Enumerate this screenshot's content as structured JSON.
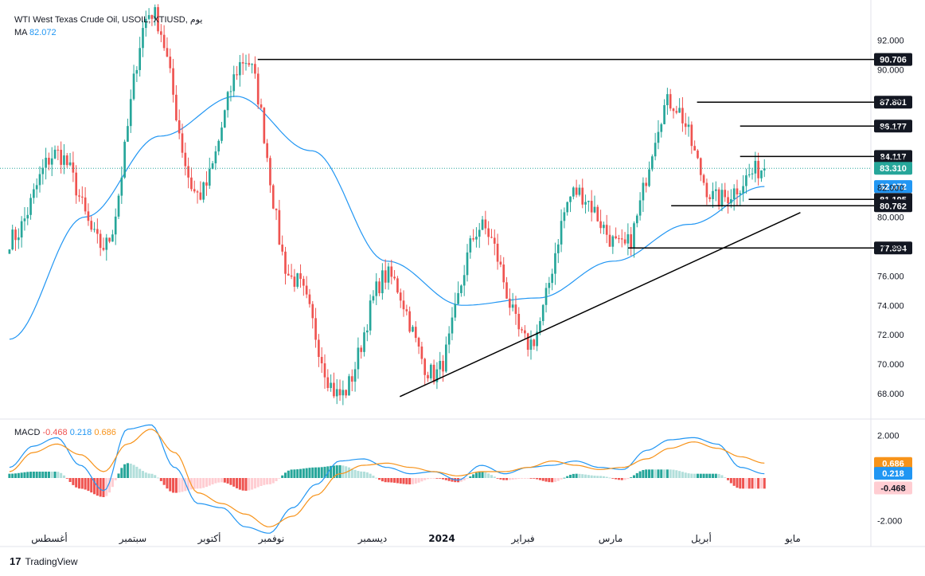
{
  "header": {
    "symbol": "WTI West Texas Crude Oil, USOIL, XTIUSD, يوم",
    "ma_label": "MA",
    "ma_value": "82.072",
    "macd_label": "MACD",
    "macd_hist": "-0.468",
    "macd_line": "0.218",
    "macd_signal": "0.686"
  },
  "branding": {
    "logo_text": "TradingView"
  },
  "colors": {
    "up": "#26a69a",
    "down": "#ef5350",
    "ma": "#2196f3",
    "signal": "#f7931a",
    "hist_up_strong": "#26a69a",
    "hist_up_weak": "#b2dfdb",
    "hist_down_strong": "#ef5350",
    "hist_down_weak": "#ffcdd2",
    "last_price_bg": "#26a69a",
    "ma_tag_bg": "#2196f3",
    "level_tag_bg": "#131722"
  },
  "chart_data": [
    {
      "type": "candlestick",
      "title": "WTI West Texas Crude Oil, USOIL, XTIUSD, يوم",
      "y_ticks": [
        "68.000",
        "70.000",
        "72.000",
        "74.000",
        "76.000",
        "78.000",
        "80.000",
        "82.000",
        "84.000",
        "86.000",
        "88.000",
        "90.000",
        "92.000"
      ],
      "ylim": [
        66.6,
        94.2
      ],
      "x_ticks": [
        "أغسطس",
        "سبتمبر",
        "أكتوبر",
        "نوفمبر",
        "ديسمبر",
        "2024",
        "فبراير",
        "مارس",
        "أبريل",
        "مايو"
      ],
      "horizontal_levels": [
        "90.706",
        "87.801",
        "86.177",
        "84.117",
        "81.195",
        "80.762",
        "77.894"
      ],
      "last_price": "83.310",
      "ma_tag": "82.072",
      "key_points": [
        {
          "label": "start",
          "value": 78.5
        },
        {
          "label": "aug-high",
          "value": 84.3
        },
        {
          "label": "late-aug-low",
          "value": 78.0
        },
        {
          "label": "sep-high",
          "value": 93.9
        },
        {
          "label": "early-oct-low",
          "value": 81.5
        },
        {
          "label": "oct-high",
          "value": 90.7
        },
        {
          "label": "nov-low",
          "value": 75.8
        },
        {
          "label": "dec-low",
          "value": 67.9
        },
        {
          "label": "dec-high",
          "value": 76.0
        },
        {
          "label": "jan-low",
          "value": 69.3
        },
        {
          "label": "jan-high",
          "value": 79.3
        },
        {
          "label": "feb-low",
          "value": 71.4
        },
        {
          "label": "mar-high",
          "value": 81.7
        },
        {
          "label": "mar-low",
          "value": 77.9
        },
        {
          "label": "apr-high",
          "value": 87.8
        },
        {
          "label": "apr-low",
          "value": 81.2
        },
        {
          "label": "last",
          "value": 83.31
        }
      ],
      "ma_points": [
        {
          "label": "start",
          "value": 71.7
        },
        {
          "label": "sep-mid",
          "value": 80.0
        },
        {
          "label": "oct-early",
          "value": 85.5
        },
        {
          "label": "nov-early",
          "value": 88.2
        },
        {
          "label": "nov-late",
          "value": 84.5
        },
        {
          "label": "dec-late",
          "value": 77.0
        },
        {
          "label": "jan-late",
          "value": 74.0
        },
        {
          "label": "feb-mid",
          "value": 74.5
        },
        {
          "label": "mar-mid",
          "value": 77.0
        },
        {
          "label": "apr-early",
          "value": 79.5
        },
        {
          "label": "last",
          "value": 82.07
        }
      ],
      "trendline": {
        "from": 67.8,
        "to": 80.3
      }
    },
    {
      "type": "macd",
      "y_ticks": [
        "2.000",
        "-2.000"
      ],
      "ylim": [
        -2.7,
        2.7
      ],
      "macd": "0.218",
      "signal": "0.686",
      "histogram": "-0.468",
      "macd_points": [
        0.5,
        1.5,
        1.9,
        0.6,
        -0.6,
        2.3,
        2.5,
        0.5,
        -1.2,
        -1.4,
        -2.3,
        -2.6,
        -1.4,
        -0.3,
        0.8,
        0.9,
        0.5,
        0.2,
        0.3,
        -0.1,
        0.6,
        0.2,
        0.5,
        0.6,
        0.8,
        0.5,
        0.4,
        1.3,
        1.8,
        1.9,
        1.6,
        0.5,
        0.2
      ],
      "signal_points": [
        0.3,
        1.2,
        1.6,
        1.1,
        0.3,
        1.6,
        2.3,
        1.2,
        -0.7,
        -1.2,
        -1.7,
        -2.3,
        -1.8,
        -0.8,
        0.2,
        0.6,
        0.7,
        0.5,
        0.3,
        0.1,
        0.3,
        0.3,
        0.5,
        0.8,
        0.6,
        0.4,
        0.5,
        0.9,
        1.4,
        1.7,
        1.4,
        1.0,
        0.7
      ]
    }
  ]
}
